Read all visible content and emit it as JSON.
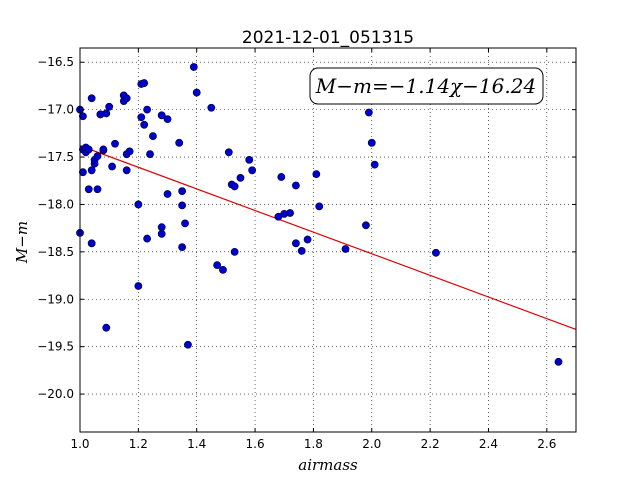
{
  "chart_data": {
    "type": "scatter",
    "title": "2021-12-01_051315",
    "xlabel": "airmass",
    "ylabel": "M−m",
    "xlim": [
      1.0,
      2.7
    ],
    "ylim": [
      -20.4,
      -16.35
    ],
    "y_inverted": true,
    "grid": true,
    "x_ticks": [
      "1.0",
      "1.2",
      "1.4",
      "1.6",
      "1.8",
      "2.0",
      "2.2",
      "2.4",
      "2.6"
    ],
    "x_tick_values": [
      1.0,
      1.2,
      1.4,
      1.6,
      1.8,
      2.0,
      2.2,
      2.4,
      2.6
    ],
    "y_ticks": [
      "−16.5",
      "−17.0",
      "−17.5",
      "−18.0",
      "−18.5",
      "−19.0",
      "−19.5",
      "−20.0"
    ],
    "y_tick_values": [
      -16.5,
      -17.0,
      -17.5,
      -18.0,
      -18.5,
      -19.0,
      -19.5,
      -20.0
    ],
    "annotation": "M−m=−1.14χ−16.24",
    "annotation_position": "top-right",
    "fit": {
      "slope": -1.14,
      "intercept": -16.24,
      "color": "#e00000"
    },
    "point_color": "#0000cc",
    "points": [
      [
        1.0,
        -17.0
      ],
      [
        1.01,
        -17.07
      ],
      [
        1.01,
        -17.42
      ],
      [
        1.01,
        -17.66
      ],
      [
        1.0,
        -18.3
      ],
      [
        1.02,
        -17.45
      ],
      [
        1.02,
        -17.4
      ],
      [
        1.03,
        -17.42
      ],
      [
        1.03,
        -17.84
      ],
      [
        1.04,
        -16.88
      ],
      [
        1.04,
        -17.64
      ],
      [
        1.04,
        -18.41
      ],
      [
        1.05,
        -17.57
      ],
      [
        1.05,
        -17.53
      ],
      [
        1.06,
        -17.49
      ],
      [
        1.06,
        -17.84
      ],
      [
        1.07,
        -17.05
      ],
      [
        1.07,
        -17.05
      ],
      [
        1.08,
        -17.43
      ],
      [
        1.08,
        -17.42
      ],
      [
        1.09,
        -17.04
      ],
      [
        1.09,
        -19.3
      ],
      [
        1.1,
        -16.97
      ],
      [
        1.11,
        -17.6
      ],
      [
        1.12,
        -17.36
      ],
      [
        1.15,
        -16.91
      ],
      [
        1.15,
        -16.85
      ],
      [
        1.16,
        -16.88
      ],
      [
        1.16,
        -17.47
      ],
      [
        1.16,
        -17.64
      ],
      [
        1.17,
        -17.44
      ],
      [
        1.2,
        -18.86
      ],
      [
        1.2,
        -18.0
      ],
      [
        1.21,
        -16.73
      ],
      [
        1.21,
        -17.08
      ],
      [
        1.22,
        -16.72
      ],
      [
        1.22,
        -17.16
      ],
      [
        1.23,
        -17.0
      ],
      [
        1.23,
        -18.36
      ],
      [
        1.24,
        -17.47
      ],
      [
        1.25,
        -17.28
      ],
      [
        1.28,
        -17.06
      ],
      [
        1.28,
        -18.31
      ],
      [
        1.28,
        -18.24
      ],
      [
        1.3,
        -17.1
      ],
      [
        1.3,
        -17.89
      ],
      [
        1.34,
        -17.35
      ],
      [
        1.35,
        -17.86
      ],
      [
        1.35,
        -18.01
      ],
      [
        1.35,
        -18.45
      ],
      [
        1.36,
        -18.2
      ],
      [
        1.37,
        -19.48
      ],
      [
        1.39,
        -16.55
      ],
      [
        1.4,
        -16.82
      ],
      [
        1.45,
        -16.98
      ],
      [
        1.47,
        -18.64
      ],
      [
        1.49,
        -18.69
      ],
      [
        1.51,
        -17.45
      ],
      [
        1.52,
        -17.79
      ],
      [
        1.53,
        -17.81
      ],
      [
        1.53,
        -18.5
      ],
      [
        1.55,
        -17.72
      ],
      [
        1.58,
        -17.53
      ],
      [
        1.59,
        -17.64
      ],
      [
        1.68,
        -18.13
      ],
      [
        1.69,
        -17.71
      ],
      [
        1.7,
        -18.1
      ],
      [
        1.72,
        -18.09
      ],
      [
        1.74,
        -17.8
      ],
      [
        1.74,
        -18.41
      ],
      [
        1.76,
        -18.49
      ],
      [
        1.78,
        -18.37
      ],
      [
        1.81,
        -17.68
      ],
      [
        1.82,
        -18.02
      ],
      [
        1.91,
        -18.47
      ],
      [
        1.98,
        -18.22
      ],
      [
        1.99,
        -17.03
      ],
      [
        2.0,
        -17.35
      ],
      [
        2.01,
        -17.58
      ],
      [
        2.22,
        -18.51
      ],
      [
        2.64,
        -19.66
      ]
    ]
  }
}
